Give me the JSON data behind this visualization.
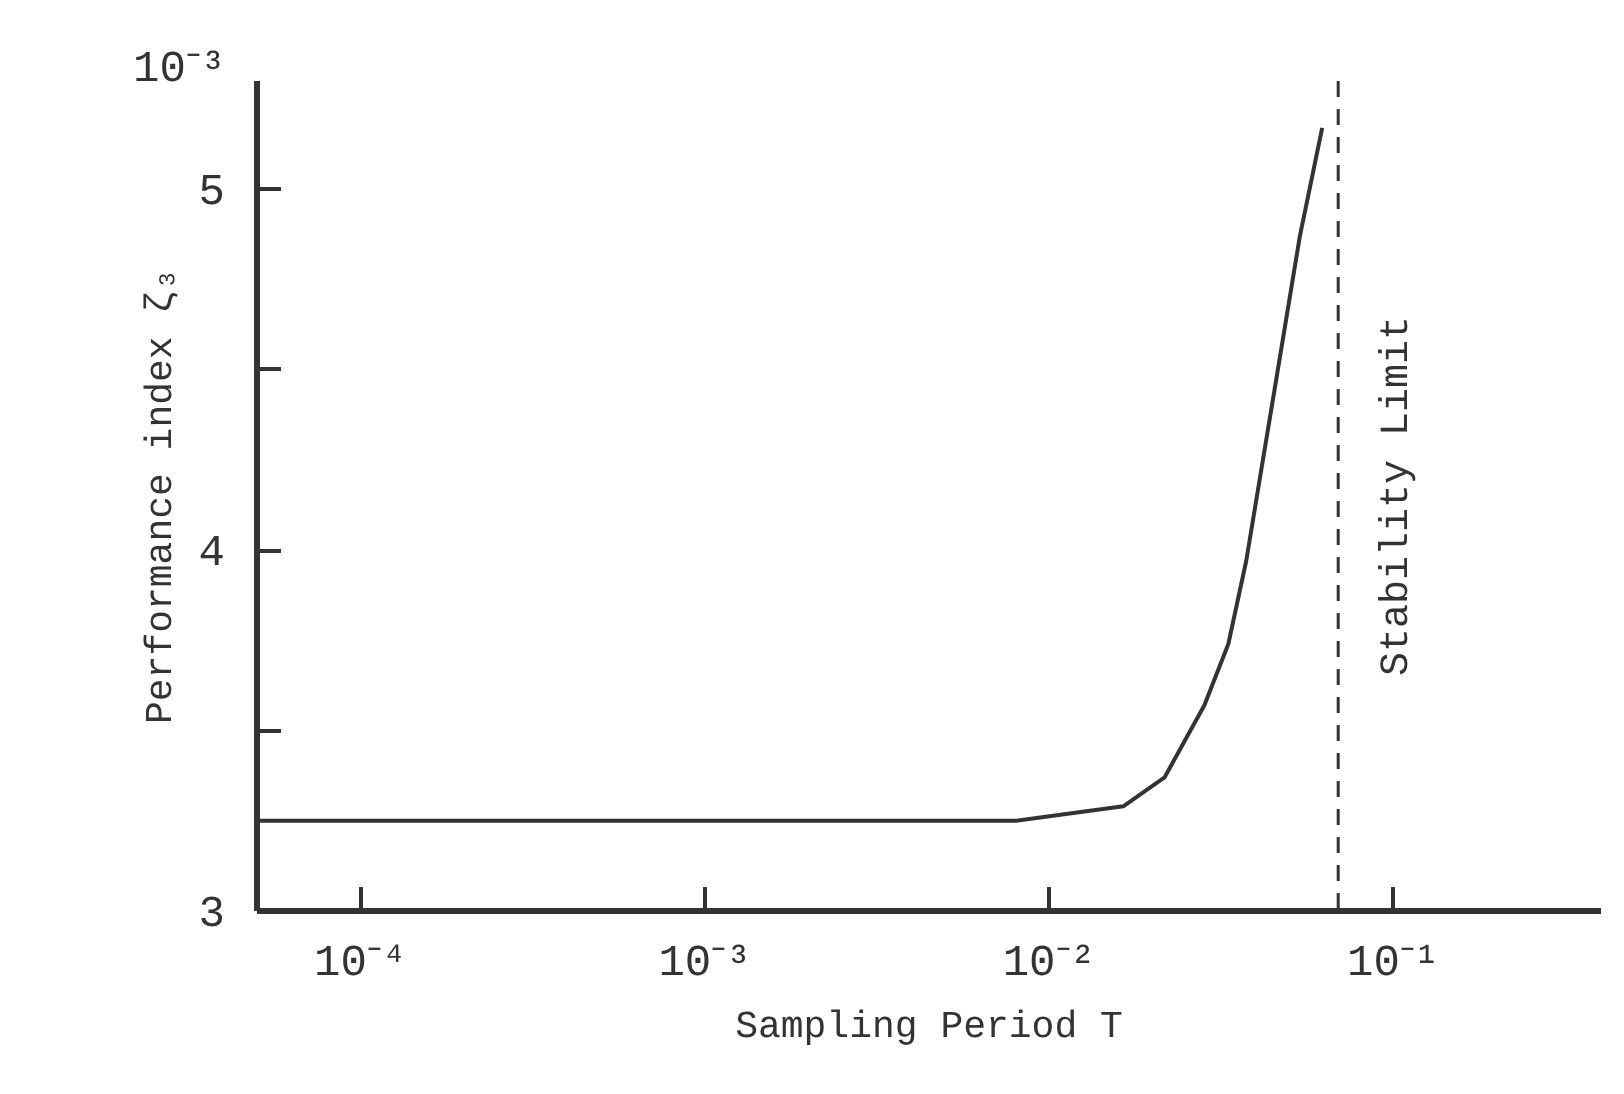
{
  "chart_data": {
    "type": "line",
    "xlabel": "Sampling Period T",
    "ylabel": "Performance index ζ₃",
    "annotations": [
      "10⁻³"
    ],
    "log": "x",
    "xlim": [
      5e-05,
      0.4
    ],
    "ylim": [
      3,
      5.3
    ],
    "xticks": [
      {
        "value": 0.0001,
        "label": "10⁻⁴"
      },
      {
        "value": 0.001,
        "label": "10⁻³"
      },
      {
        "value": 0.01,
        "label": "10⁻²"
      },
      {
        "value": 0.1,
        "label": "10⁻¹"
      }
    ],
    "yticks": [
      3,
      {
        "value": 3.5,
        "label": null
      },
      4,
      {
        "value": 4.5,
        "label": null
      },
      5
    ],
    "series": [
      {
        "color": "#333333",
        "x": [
          5e-05,
          0.001,
          0.008,
          0.0164,
          0.0216,
          0.0282,
          0.0331,
          0.0373,
          0.045,
          0.0534,
          0.062
        ],
        "values": [
          3.25,
          3.25,
          3.25,
          3.29,
          3.37,
          3.57,
          3.74,
          3.97,
          4.44,
          4.87,
          5.17
        ]
      }
    ],
    "ref_lines": [
      {
        "axis": "x",
        "value": 0.069,
        "label": "Stability Limit",
        "line_style": "dashed",
        "color": "#333333"
      }
    ],
    "grid": false,
    "marker": "none",
    "line_style": "solid"
  }
}
